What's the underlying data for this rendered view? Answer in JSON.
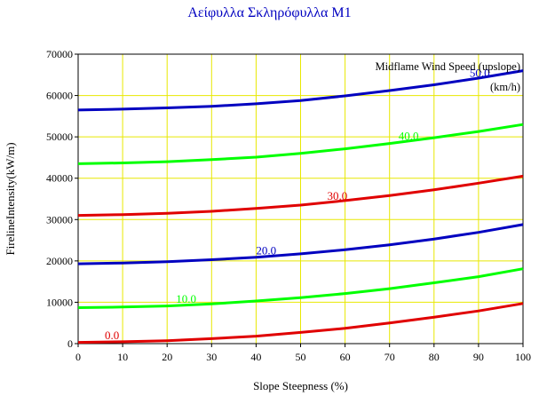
{
  "chart_data": {
    "type": "line",
    "title": "Αείφυλλα Σκληρόφυλλα M1",
    "xlabel": "Slope Steepness (%)",
    "ylabel": "FirelineIntensity(kW/m)",
    "xlim": [
      0,
      100
    ],
    "ylim": [
      0,
      70000
    ],
    "x_ticks": [
      "0",
      "10",
      "20",
      "30",
      "40",
      "50",
      "60",
      "70",
      "80",
      "90",
      "100"
    ],
    "y_ticks": [
      "0",
      "10000",
      "20000",
      "30000",
      "40000",
      "50000",
      "60000",
      "70000"
    ],
    "grid": true,
    "legend": {
      "title": "Midflame Wind Speed (upslope)",
      "unit": "(km/h)",
      "placement": "top-right"
    },
    "x": [
      0,
      10,
      20,
      30,
      40,
      50,
      60,
      70,
      80,
      90,
      100
    ],
    "series": [
      {
        "name": "0.0",
        "color": "#e00000",
        "label_x": 6,
        "values": [
          300,
          450,
          700,
          1200,
          1800,
          2700,
          3700,
          5000,
          6400,
          7900,
          9700
        ]
      },
      {
        "name": "10.0",
        "color": "#00ff00",
        "label_x": 22,
        "values": [
          8700,
          8850,
          9100,
          9600,
          10300,
          11100,
          12100,
          13300,
          14700,
          16200,
          18100
        ]
      },
      {
        "name": "20.0",
        "color": "#0000c0",
        "label_x": 40,
        "values": [
          19300,
          19500,
          19800,
          20300,
          20900,
          21700,
          22700,
          23900,
          25300,
          26900,
          28800
        ]
      },
      {
        "name": "30.0",
        "color": "#e00000",
        "label_x": 56,
        "values": [
          31000,
          31200,
          31500,
          32000,
          32700,
          33500,
          34600,
          35800,
          37200,
          38800,
          40500
        ]
      },
      {
        "name": "40.0",
        "color": "#00ff00",
        "label_x": 72,
        "values": [
          43500,
          43700,
          44000,
          44500,
          45100,
          46000,
          47100,
          48400,
          49800,
          51300,
          53000
        ]
      },
      {
        "name": "50.0",
        "color": "#0000c0",
        "label_x": 88,
        "values": [
          56500,
          56700,
          57000,
          57400,
          58000,
          58800,
          59900,
          61200,
          62600,
          64200,
          66000
        ]
      }
    ]
  }
}
